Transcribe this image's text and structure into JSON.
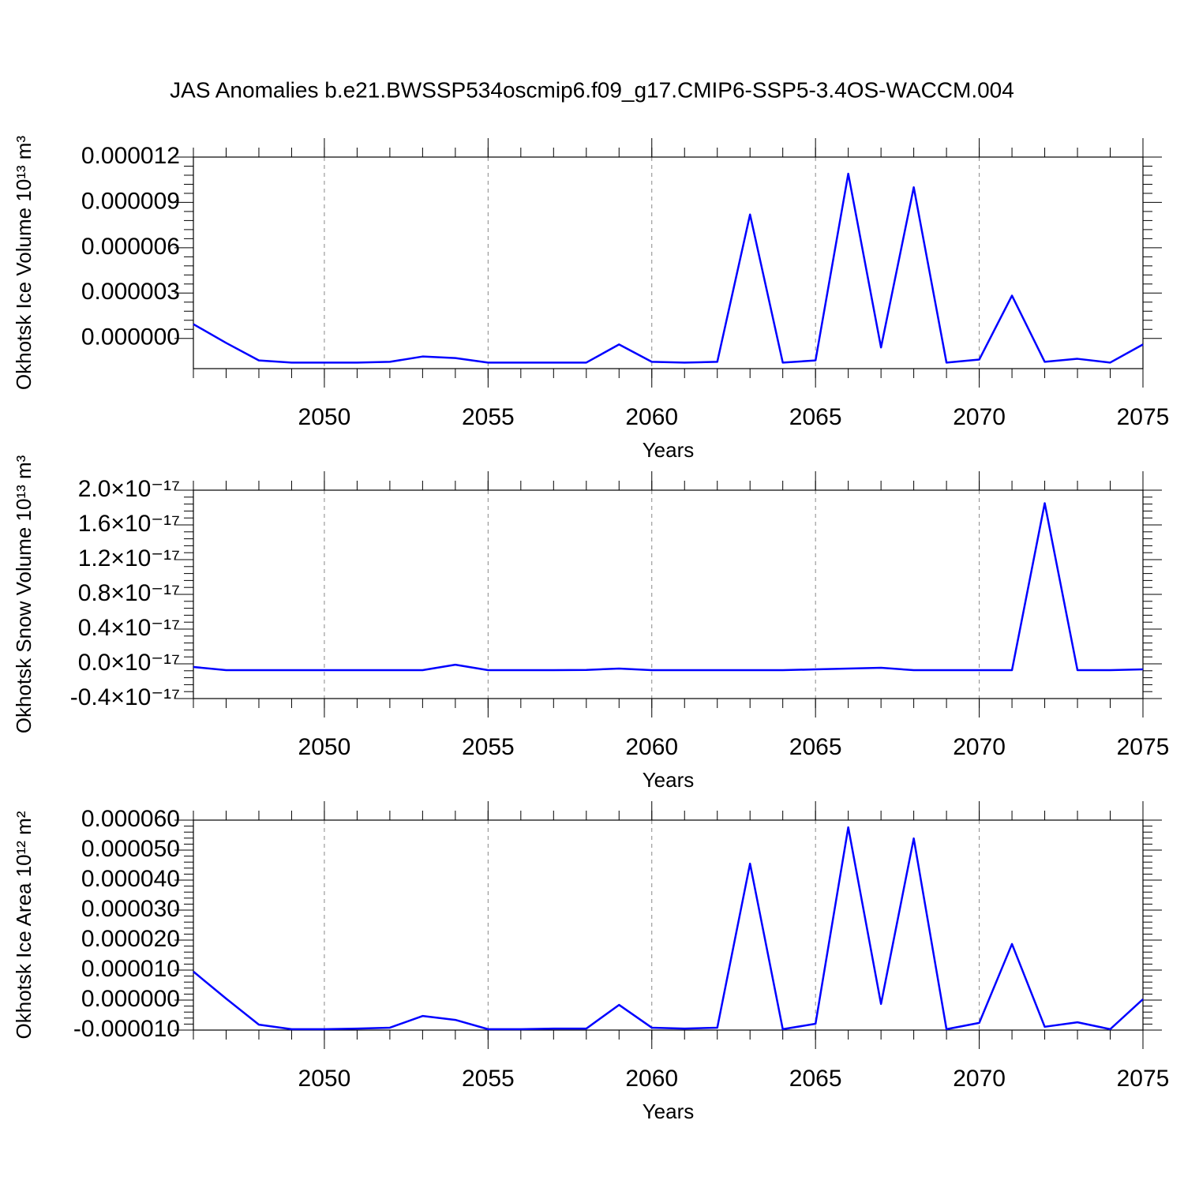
{
  "title": "JAS Anomalies b.e21.BWSSP534oscmip6.f09_g17.CMIP6-SSP5-3.4OS-WACCM.004",
  "chart_data": [
    {
      "type": "line",
      "xlabel": "Years",
      "ylabel": "Okhotsk Ice Volume 10¹³ m³",
      "color": "#0000ff",
      "grid": true,
      "x": [
        2046,
        2047,
        2048,
        2049,
        2050,
        2051,
        2052,
        2053,
        2054,
        2055,
        2056,
        2057,
        2058,
        2059,
        2060,
        2061,
        2062,
        2063,
        2064,
        2065,
        2066,
        2067,
        2068,
        2069,
        2070,
        2071,
        2072,
        2073,
        2074,
        2075
      ],
      "values": [
        9.4e-07,
        -3e-07,
        -1.46e-06,
        -1.6e-06,
        -1.6e-06,
        -1.6e-06,
        -1.55e-06,
        -1.2e-06,
        -1.3e-06,
        -1.6e-06,
        -1.6e-06,
        -1.6e-06,
        -1.6e-06,
        -4e-07,
        -1.55e-06,
        -1.6e-06,
        -1.55e-06,
        8.2e-06,
        -1.6e-06,
        -1.46e-06,
        1.09e-05,
        -6e-07,
        1e-05,
        -1.6e-06,
        -1.4e-06,
        2.83e-06,
        -1.55e-06,
        -1.35e-06,
        -1.6e-06,
        -4e-07
      ],
      "xlim": [
        2046,
        2075
      ],
      "xticks": [
        2050,
        2055,
        2060,
        2065,
        2070,
        2075
      ],
      "ylim": [
        -2e-06,
        1.2e-05
      ],
      "yticks": [
        {
          "value": 0,
          "label": "0.000000"
        },
        3e-06,
        6e-06,
        9e-06,
        1.2e-05
      ]
    },
    {
      "type": "line",
      "xlabel": "Years",
      "ylabel": "Okhotsk Snow Volume 10¹³ m³",
      "color": "#0000ff",
      "grid": true,
      "x": [
        2046,
        2047,
        2048,
        2049,
        2050,
        2051,
        2052,
        2053,
        2054,
        2055,
        2056,
        2057,
        2058,
        2059,
        2060,
        2061,
        2062,
        2063,
        2064,
        2065,
        2066,
        2067,
        2068,
        2069,
        2070,
        2071,
        2072,
        2073,
        2074,
        2075
      ],
      "values": [
        -3.6e-19,
        -7.3e-19,
        -7.3e-19,
        -7.3e-19,
        -7.3e-19,
        -7.3e-19,
        -7.3e-19,
        -7.3e-19,
        -1e-19,
        -7.3e-19,
        -7.3e-19,
        -7.3e-19,
        -7e-19,
        -5.5e-19,
        -7.3e-19,
        -7.3e-19,
        -7.3e-19,
        -7.3e-19,
        -7.3e-19,
        -6.4e-19,
        -5.5e-19,
        -4.5e-19,
        -7.3e-19,
        -7.3e-19,
        -7.3e-19,
        -7.3e-19,
        1.85e-17,
        -7.3e-19,
        -7.3e-19,
        -6.4e-19
      ],
      "xlim": [
        2046,
        2075
      ],
      "xticks": [
        2050,
        2055,
        2060,
        2065,
        2070,
        2075
      ],
      "ylim": [
        -4e-18,
        2e-17
      ],
      "yticks": [
        {
          "value": -4e-18,
          "label": "-0.4×10⁻¹⁷"
        },
        {
          "value": 0,
          "label": "0.0×10⁻¹⁷"
        },
        {
          "value": 4e-18,
          "label": "0.4×10⁻¹⁷"
        },
        {
          "value": 8e-18,
          "label": "0.8×10⁻¹⁷"
        },
        {
          "value": 1.2e-17,
          "label": "1.2×10⁻¹⁷"
        },
        {
          "value": 1.6e-17,
          "label": "1.6×10⁻¹⁷"
        },
        {
          "value": 2e-17,
          "label": "2.0×10⁻¹⁷"
        }
      ]
    },
    {
      "type": "line",
      "xlabel": "Years",
      "ylabel": "Okhotsk Ice Area 10¹² m²",
      "color": "#0000ff",
      "grid": true,
      "x": [
        2046,
        2047,
        2048,
        2049,
        2050,
        2051,
        2052,
        2053,
        2054,
        2055,
        2056,
        2057,
        2058,
        2059,
        2060,
        2061,
        2062,
        2063,
        2064,
        2065,
        2066,
        2067,
        2068,
        2069,
        2070,
        2071,
        2072,
        2073,
        2074,
        2075
      ],
      "values": [
        9.5e-06,
        5e-07,
        -8.2e-06,
        -9.7e-06,
        -9.7e-06,
        -9.5e-06,
        -9.2e-06,
        -5.3e-06,
        -6.6e-06,
        -9.7e-06,
        -9.7e-06,
        -9.5e-06,
        -9.5e-06,
        -1.6e-06,
        -9.2e-06,
        -9.5e-06,
        -9.2e-06,
        4.55e-05,
        -9.7e-06,
        -7.9e-06,
        5.76e-05,
        -1.3e-06,
        5.39e-05,
        -9.7e-06,
        -7.6e-06,
        1.87e-05,
        -8.9e-06,
        -7.4e-06,
        -9.7e-06,
        3e-07
      ],
      "xlim": [
        2046,
        2075
      ],
      "xticks": [
        2050,
        2055,
        2060,
        2065,
        2070,
        2075
      ],
      "ylim": [
        -1e-05,
        6e-05
      ],
      "yticks": [
        {
          "value": -1e-05,
          "label": "-0.000010"
        },
        {
          "value": 0,
          "label": "0.000000"
        },
        {
          "value": 1e-05,
          "label": "0.000010"
        },
        {
          "value": 2e-05,
          "label": "0.000020"
        },
        {
          "value": 3e-05,
          "label": "0.000030"
        },
        {
          "value": 4e-05,
          "label": "0.000040"
        },
        {
          "value": 5e-05,
          "label": "0.000050"
        },
        {
          "value": 6e-05,
          "label": "0.000060"
        }
      ]
    }
  ]
}
